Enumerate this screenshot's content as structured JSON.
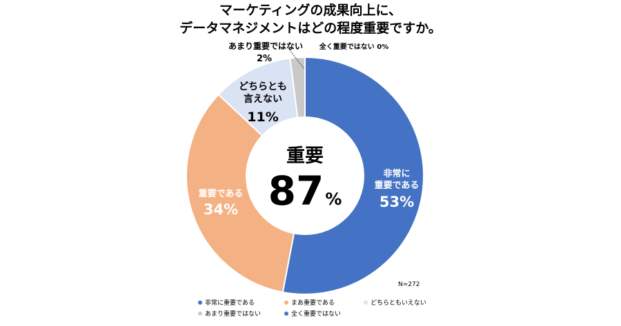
{
  "title_line1": "マーケティングの成果向上に、",
  "title_line2": "データマネジメントはどの程度重要ですか。",
  "center": {
    "label": "重要",
    "value": "87",
    "unit": "%"
  },
  "note": "N=272",
  "chart_data": {
    "type": "pie",
    "donut": true,
    "title": "マーケティングの成果向上に、データマネジメントはどの程度重要ですか。",
    "categories": [
      "非常に重要である",
      "まあ重要である",
      "どちらともいえない",
      "あまり重要ではない",
      "全く重要ではない"
    ],
    "values": [
      53,
      34,
      11,
      2,
      0
    ],
    "unit": "%",
    "colors": [
      "#4472C4",
      "#F4B183",
      "#DAE3F3",
      "#C9C9C9",
      "#4472C4"
    ],
    "slice_labels": [
      {
        "lines": [
          "非常に",
          "重要である"
        ],
        "value": "53%"
      },
      {
        "lines": [
          "重要である"
        ],
        "value": "34%"
      },
      {
        "lines": [
          "どちらとも",
          "言えない"
        ],
        "value": "11%"
      },
      {
        "lines": [
          "あまり重要ではない"
        ],
        "value": "2%"
      },
      {
        "lines": [
          "全く重要ではない"
        ],
        "value": "0%"
      }
    ],
    "legend": [
      "非常に重要である",
      "まあ重要である",
      "どちらともいえない",
      "あまり重要ではない",
      "全く重要ではない"
    ],
    "legend_position": "bottom",
    "sample_size": "N=272"
  }
}
